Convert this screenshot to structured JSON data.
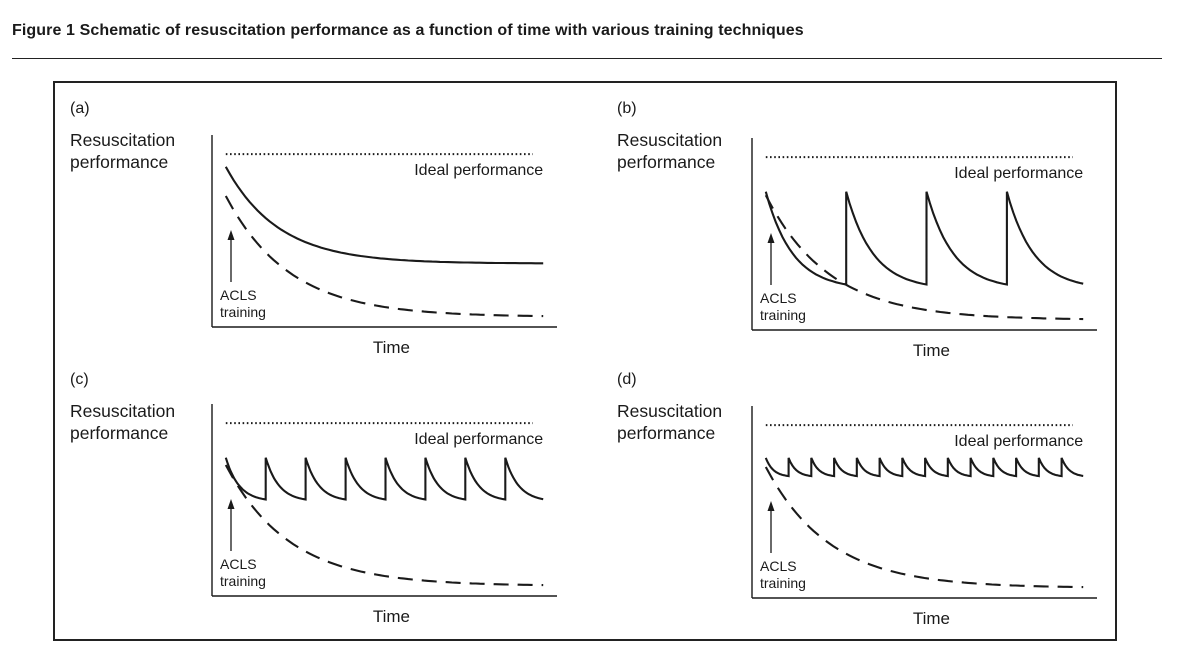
{
  "figure": {
    "title": "Figure 1  Schematic of resuscitation performance as a function of time with various training techniques"
  },
  "colors": {
    "ink": "#1a1a1a"
  },
  "chart_data": [
    {
      "type": "line",
      "panel": "(a)",
      "ylabel": [
        "Resuscitation",
        "performance"
      ],
      "xlabel": "Time",
      "xlim": [
        0,
        1
      ],
      "ylim": [
        0,
        1
      ],
      "ideal": {
        "label": "Ideal performance",
        "y": 0.95,
        "style": "dotted"
      },
      "annotation": [
        "ACLS",
        "training"
      ],
      "series": [
        {
          "style": "solid",
          "kind": "decay",
          "start": 0.88,
          "end": 0.35,
          "rate": 6
        },
        {
          "style": "dashed",
          "kind": "decay",
          "start": 0.72,
          "end": 0.06,
          "rate": 5
        }
      ]
    },
    {
      "type": "line",
      "panel": "(b)",
      "ylabel": [
        "Resuscitation",
        "performance"
      ],
      "xlabel": "Time",
      "xlim": [
        0,
        1
      ],
      "ylim": [
        0,
        1
      ],
      "ideal": {
        "label": "Ideal performance",
        "y": 0.95,
        "style": "dotted"
      },
      "annotation": [
        "ACLS",
        "training"
      ],
      "series": [
        {
          "style": "solid",
          "kind": "sawtooth",
          "peak": 0.76,
          "trough": 0.25,
          "cycles": 4,
          "last_fraction": 0.95
        },
        {
          "style": "dashed",
          "kind": "decay",
          "start": 0.74,
          "end": 0.06,
          "rate": 5
        }
      ]
    },
    {
      "type": "line",
      "panel": "(c)",
      "ylabel": [
        "Resuscitation",
        "performance"
      ],
      "xlabel": "Time",
      "xlim": [
        0,
        1
      ],
      "ylim": [
        0,
        1
      ],
      "ideal": {
        "label": "Ideal performance",
        "y": 0.95,
        "style": "dotted"
      },
      "annotation": [
        "ACLS",
        "training"
      ],
      "series": [
        {
          "style": "solid",
          "kind": "sawtooth",
          "peak": 0.76,
          "trough": 0.53,
          "cycles": 8,
          "last_fraction": 0.95
        },
        {
          "style": "dashed",
          "kind": "decay",
          "start": 0.72,
          "end": 0.06,
          "rate": 5
        }
      ]
    },
    {
      "type": "line",
      "panel": "(d)",
      "ylabel": [
        "Resuscitation",
        "performance"
      ],
      "xlabel": "Time",
      "xlim": [
        0,
        1
      ],
      "ylim": [
        0,
        1
      ],
      "ideal": {
        "label": "Ideal performance",
        "y": 0.95,
        "style": "dotted"
      },
      "annotation": [
        "ACLS",
        "training"
      ],
      "series": [
        {
          "style": "solid",
          "kind": "sawtooth",
          "peak": 0.77,
          "trough": 0.67,
          "cycles": 14,
          "last_fraction": 0.95
        },
        {
          "style": "dashed",
          "kind": "decay",
          "start": 0.72,
          "end": 0.06,
          "rate": 5
        }
      ]
    }
  ]
}
